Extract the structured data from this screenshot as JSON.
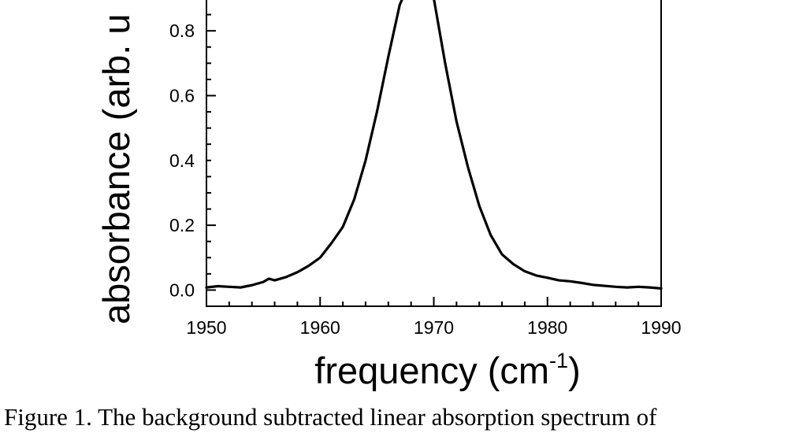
{
  "figure": {
    "caption": "Figure 1.  The background subtracted linear absorption spectrum of"
  },
  "chart_data": {
    "type": "line",
    "title": "",
    "xlabel": "frequency (cm",
    "xlabel_superscript": "-1",
    "xlabel_suffix": ")",
    "ylabel": "absorbance (arb. u",
    "xlim": [
      1950,
      1990
    ],
    "ylim": [
      -0.05,
      0.9
    ],
    "xticks": [
      1950,
      1960,
      1970,
      1980,
      1990
    ],
    "xtick_labels": [
      "1950",
      "1960",
      "1970",
      "1980",
      "1990"
    ],
    "yticks": [
      0.0,
      0.2,
      0.4,
      0.6,
      0.8
    ],
    "ytick_labels": [
      "0.0",
      "0.2",
      "0.4",
      "0.6",
      "0.8"
    ],
    "grid": false,
    "series": [
      {
        "color": "#000000",
        "x": [
          1950,
          1951,
          1952,
          1953,
          1954,
          1955,
          1955.5,
          1956,
          1957,
          1958,
          1959,
          1960,
          1961,
          1962,
          1963,
          1964,
          1965,
          1966,
          1967,
          1968,
          1969,
          1970,
          1971,
          1972,
          1973,
          1974,
          1975,
          1976,
          1977,
          1978,
          1979,
          1980,
          1981,
          1982,
          1983,
          1984,
          1985,
          1986,
          1987,
          1988,
          1989,
          1990
        ],
        "y": [
          0.008,
          0.012,
          0.01,
          0.008,
          0.015,
          0.025,
          0.035,
          0.03,
          0.04,
          0.055,
          0.075,
          0.1,
          0.145,
          0.195,
          0.28,
          0.4,
          0.55,
          0.72,
          0.88,
          0.96,
          0.98,
          0.9,
          0.7,
          0.52,
          0.38,
          0.26,
          0.17,
          0.11,
          0.08,
          0.058,
          0.045,
          0.038,
          0.03,
          0.027,
          0.022,
          0.016,
          0.013,
          0.01,
          0.008,
          0.01,
          0.008,
          0.005
        ]
      }
    ]
  }
}
